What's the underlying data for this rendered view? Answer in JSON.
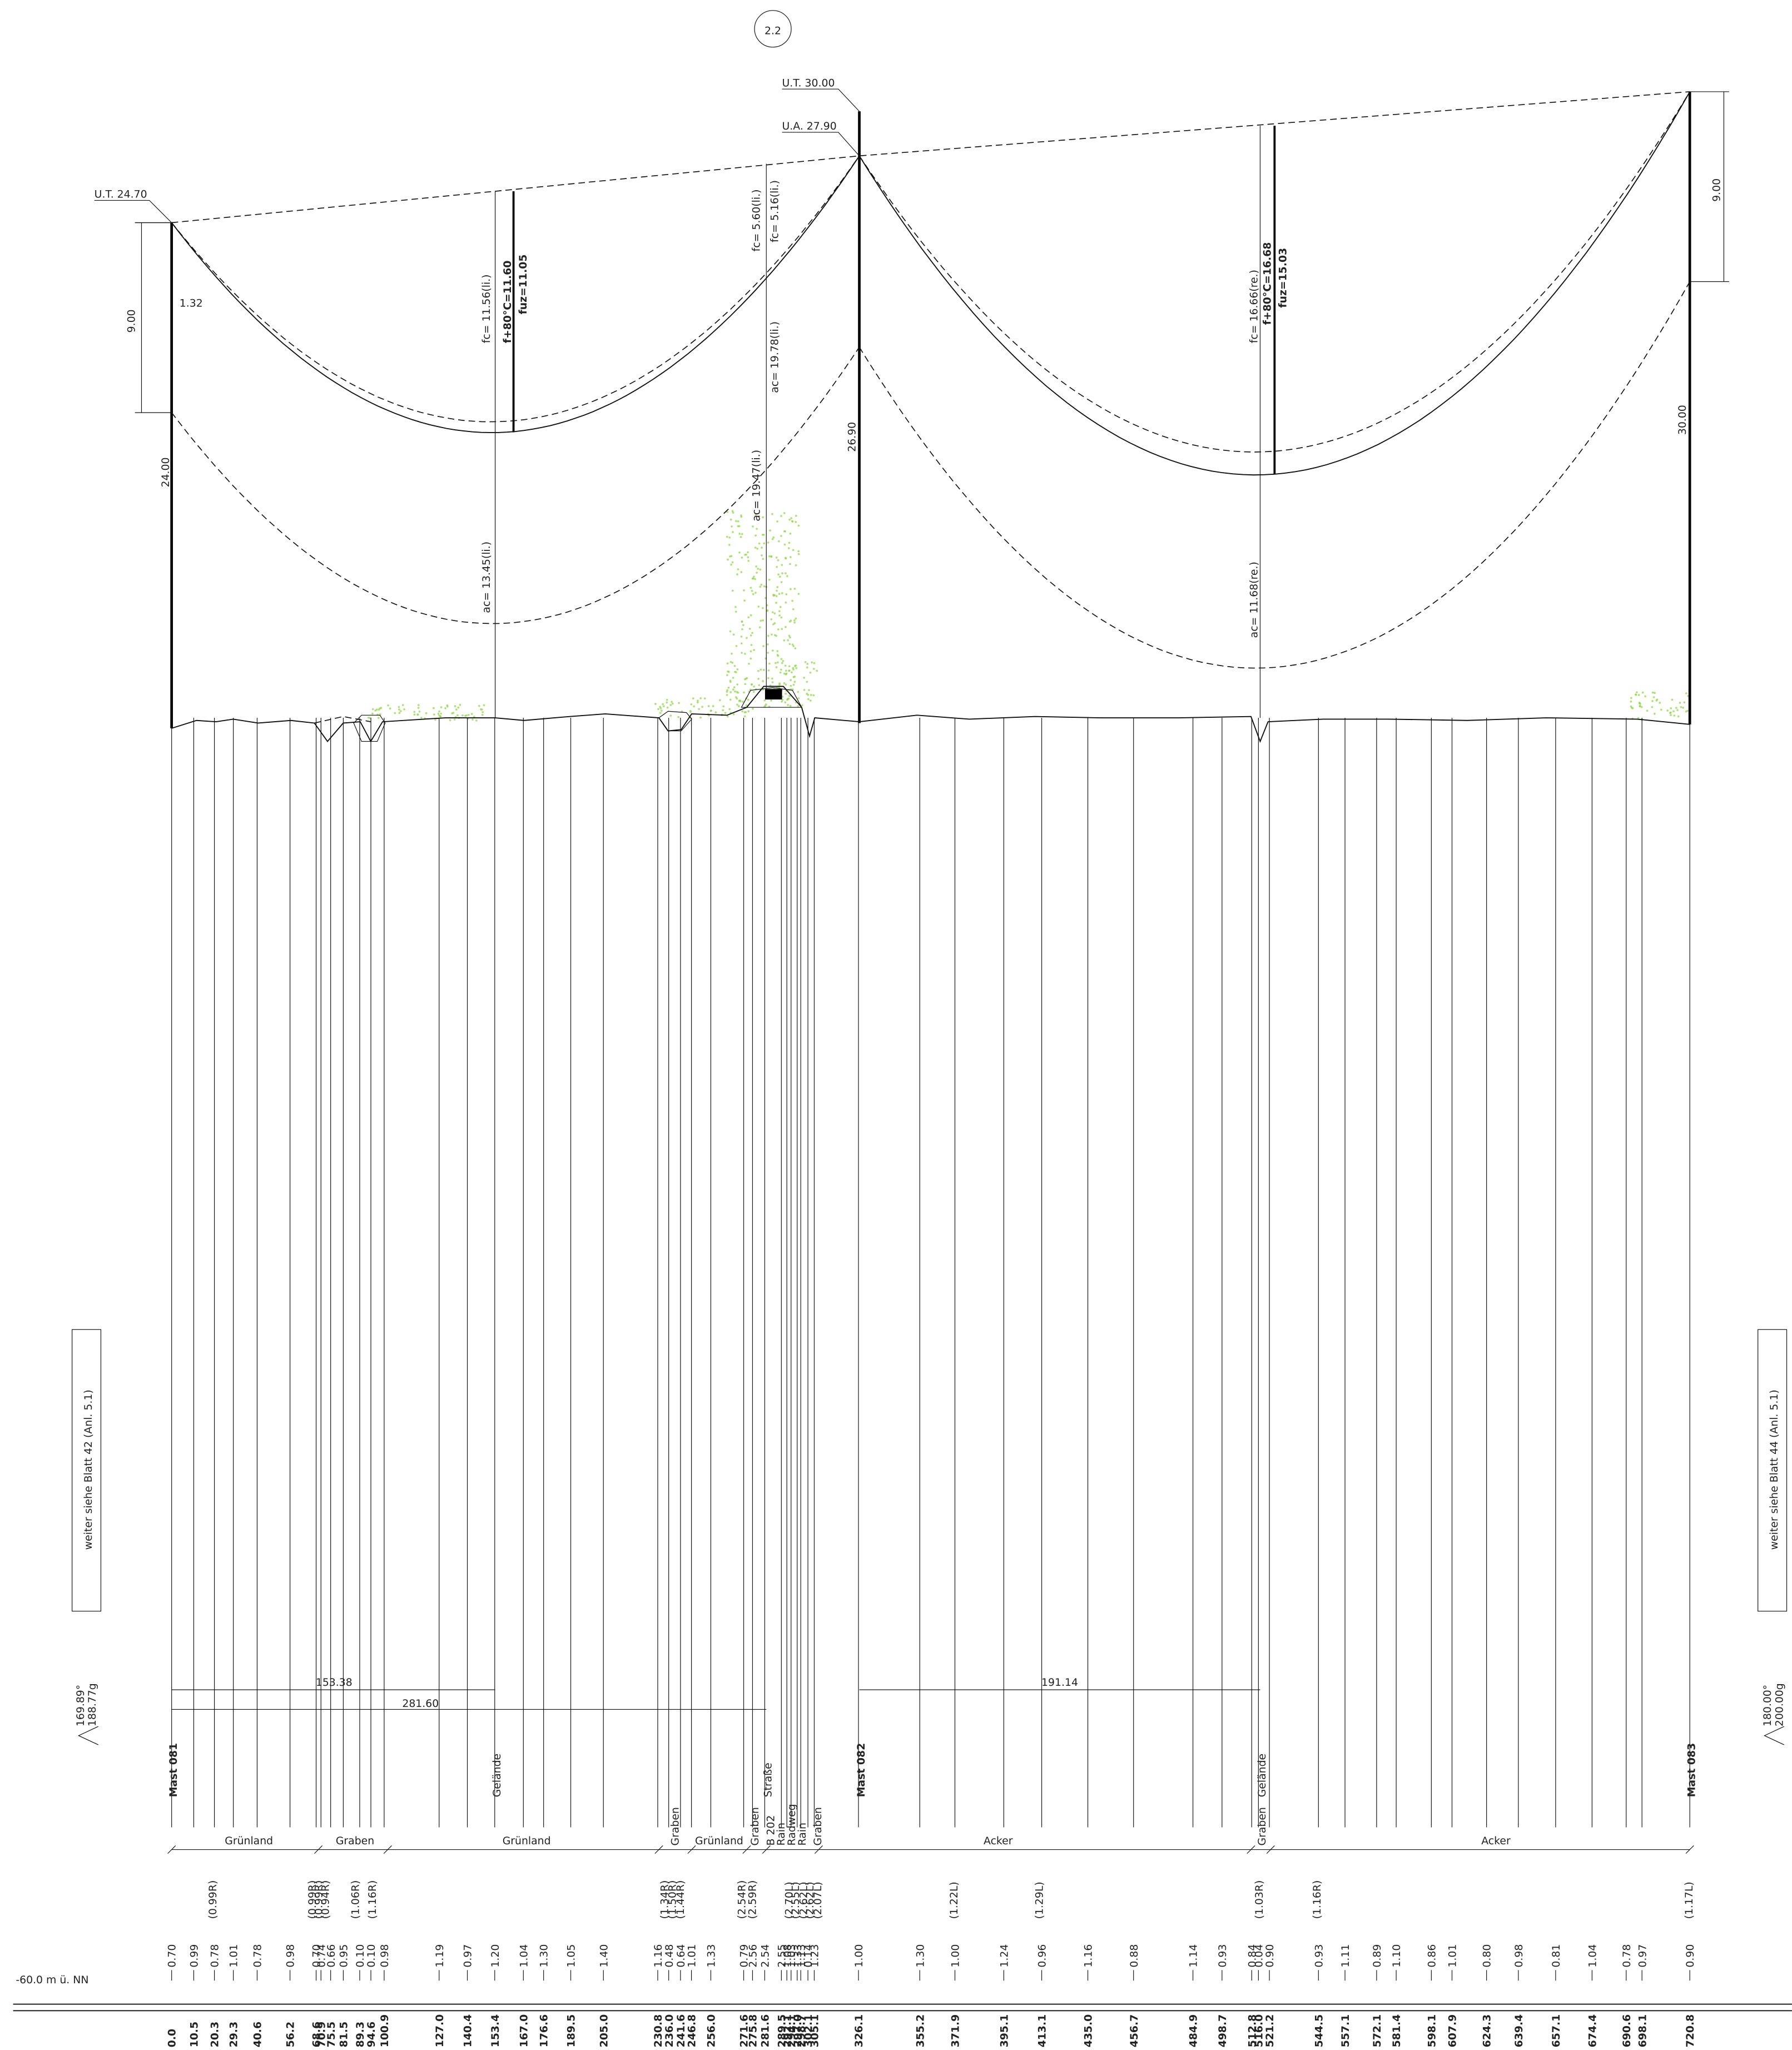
{
  "sheet_number": "2.2",
  "masts": [
    {
      "name": "Mast 081",
      "top_label": "U.T. 24.70",
      "height": "24.00"
    },
    {
      "name": "Mast 082",
      "top_label": "U.T. 30.00",
      "arm_label": "U.A. 27.90",
      "height": "26.90"
    },
    {
      "name": "Mast 083",
      "height": "30.00"
    }
  ],
  "dimensions": {
    "left_insulator": "9.00",
    "right_insulator": "9.00",
    "offset": "1.32"
  },
  "sag_labels": [
    "fc= 11.56(li.)",
    "f+80°C=11.60",
    "fuz=11.05",
    "ac= 13.45(li.)",
    "fc= 5.60(li.)",
    "fc= 5.16(li.)",
    "ac= 19.47(li.)",
    "ac= 19.78(li.)",
    "fc= 16.66(re.)",
    "f+80°C=16.68",
    "fuz=15.03",
    "ac= 11.68(re.)"
  ],
  "spans": [
    "153.38",
    "281.60",
    "191.14"
  ],
  "angles": {
    "left": [
      "169.89°",
      "188.77g"
    ],
    "right": [
      "180.00°",
      "200.00g"
    ]
  },
  "references": {
    "left": "weiter siehe Blatt 42 (Anl. 5.1)",
    "right": "weiter siehe Blatt 44 (Anl. 5.1)"
  },
  "datum": "-60.0 m ü. NN",
  "features": [
    "Mast 081",
    "Gelände",
    "Straße",
    "Mast 082",
    "Gelände",
    "Mast 083"
  ],
  "land_use": [
    "Grünland",
    "Graben",
    "Grünland",
    "Graben",
    "Grünland",
    "Graben",
    "B 202",
    "Rain",
    "Radweg",
    "Rain",
    "Graben",
    "Acker",
    "Graben",
    "Acker"
  ],
  "crossing_heights": [
    "(0.99R)",
    "(0.99R)",
    "(0.99R)",
    "(0.94R)",
    "(1.06R)",
    "(1.16R)",
    "(1.34R)",
    "(1.50R)",
    "(1.44R)",
    "(2.54R)",
    "(2.59R)",
    "(2.70L)",
    "(2.55L)",
    "(2.62L)",
    "(2.62L)",
    "(2.07L)",
    "(1.22L)",
    "(1.29L)",
    "(1.03R)",
    "(1.16R)",
    "(1.17L)"
  ],
  "stations": [
    {
      "km": "0.0",
      "height": "0.70"
    },
    {
      "km": "10.5",
      "height": "0.99"
    },
    {
      "km": "20.3",
      "height": "0.78"
    },
    {
      "km": "29.3",
      "height": "1.01"
    },
    {
      "km": "40.6",
      "height": "0.78"
    },
    {
      "km": "56.2",
      "height": "0.98"
    },
    {
      "km": "68.6",
      "height": "0.70"
    },
    {
      "km": "70.9",
      "height": "0.74"
    },
    {
      "km": "75.5",
      "height": "0.66"
    },
    {
      "km": "81.5",
      "height": "0.95"
    },
    {
      "km": "89.3",
      "height": "0.10"
    },
    {
      "km": "94.6",
      "height": "0.10"
    },
    {
      "km": "100.9",
      "height": "0.98"
    },
    {
      "km": "127.0",
      "height": "1.19"
    },
    {
      "km": "140.4",
      "height": "0.97"
    },
    {
      "km": "153.4",
      "height": "1.20"
    },
    {
      "km": "167.0",
      "height": "1.04"
    },
    {
      "km": "176.6",
      "height": "1.30"
    },
    {
      "km": "189.5",
      "height": "1.05"
    },
    {
      "km": "205.0",
      "height": "1.40"
    },
    {
      "km": "230.8",
      "height": "1.16"
    },
    {
      "km": "236.0",
      "height": "0.48"
    },
    {
      "km": "241.6",
      "height": "0.64"
    },
    {
      "km": "246.8",
      "height": "1.01"
    },
    {
      "km": "256.0",
      "height": "1.33"
    },
    {
      "km": "271.6",
      "height": "0.79"
    },
    {
      "km": "275.8",
      "height": "2.56"
    },
    {
      "km": "281.6",
      "height": "2.54"
    },
    {
      "km": "289.5",
      "height": "2.55"
    },
    {
      "km": "292.1",
      "height": "1.08"
    },
    {
      "km": "294.1",
      "height": "1.03"
    },
    {
      "km": "297.0",
      "height": "1.33"
    },
    {
      "km": "298.7",
      "height": "1.13"
    },
    {
      "km": "302.1",
      "height": "0.14"
    },
    {
      "km": "305.1",
      "height": "1.23"
    },
    {
      "km": "326.1",
      "height": "1.00"
    },
    {
      "km": "355.2",
      "height": "1.30"
    },
    {
      "km": "371.9",
      "height": "1.00"
    },
    {
      "km": "395.1",
      "height": "1.24"
    },
    {
      "km": "413.1",
      "height": "0.96"
    },
    {
      "km": "435.0",
      "height": "1.16"
    },
    {
      "km": "456.7",
      "height": "0.88"
    },
    {
      "km": "484.9",
      "height": "1.14"
    },
    {
      "km": "498.7",
      "height": "0.93"
    },
    {
      "km": "512.8",
      "height": "0.84"
    },
    {
      "km": "516.0",
      "height": "0.04"
    },
    {
      "km": "521.2",
      "height": "0.90"
    },
    {
      "km": "544.5",
      "height": "0.93"
    },
    {
      "km": "557.1",
      "height": "1.11"
    },
    {
      "km": "572.1",
      "height": "0.89"
    },
    {
      "km": "581.4",
      "height": "1.10"
    },
    {
      "km": "598.1",
      "height": "0.86"
    },
    {
      "km": "607.9",
      "height": "1.01"
    },
    {
      "km": "624.3",
      "height": "0.80"
    },
    {
      "km": "639.4",
      "height": "0.98"
    },
    {
      "km": "657.1",
      "height": "0.81"
    },
    {
      "km": "674.4",
      "height": "1.04"
    },
    {
      "km": "690.6",
      "height": "0.78"
    },
    {
      "km": "698.1",
      "height": "0.97"
    },
    {
      "km": "720.8",
      "height": "0.90"
    }
  ]
}
